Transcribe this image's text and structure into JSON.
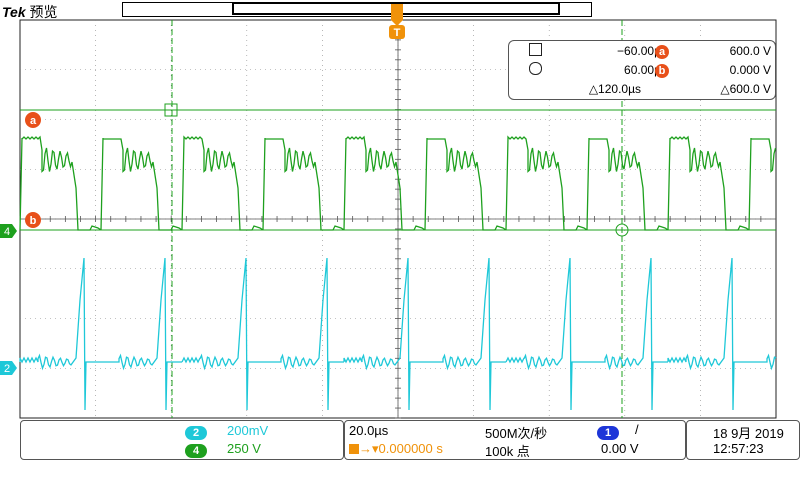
{
  "header": {
    "brand": "Tek",
    "mode": "预览"
  },
  "trigger_marker": "T",
  "cursor_readout": {
    "cursor1_time": "−60.00µs",
    "cursor2_time": "60.00µs",
    "delta_time": "△120.0µs",
    "cursor_a_label": "a",
    "cursor_a_value": "600.0 V",
    "cursor_b_label": "b",
    "cursor_b_value": "0.000 V",
    "delta_value": "△600.0 V"
  },
  "waveform_labels": {
    "marker_a": "a",
    "marker_b": "b",
    "ch4_ref": "4",
    "ch2_ref": "2"
  },
  "channels": [
    {
      "id": "2",
      "scale": "200mV",
      "color": "#1ec8d8"
    },
    {
      "id": "4",
      "scale": "250 V",
      "color": "#1ea01e"
    }
  ],
  "timebase": {
    "scale": "20.0µs",
    "sample_rate": "500M次/秒",
    "delay": "0.000000 s",
    "record_length": "100k 点"
  },
  "trigger": {
    "source": "1",
    "slope": "/",
    "level": "0.00 V",
    "color": "#1e36d8"
  },
  "clock": {
    "date": "18 9月 2019",
    "time": "12:57:23"
  },
  "colors": {
    "ch4_trace": "#1ea01e",
    "ch2_trace": "#1ec8d8",
    "cursor_marker": "#e8501a",
    "grid": "#333333"
  }
}
